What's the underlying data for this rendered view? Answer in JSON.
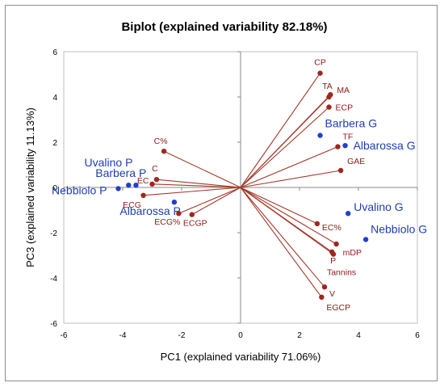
{
  "chart_data": {
    "type": "scatter",
    "title": "Biplot (explained variability 82.18%)",
    "xlabel": "PC1 (explained variability 71.06%)",
    "ylabel": "PC3 (explained variability 11.13%)",
    "xlim": [
      -6,
      6
    ],
    "ylim": [
      -6,
      6
    ],
    "xticks": [
      -6,
      -4,
      -2,
      0,
      2,
      4,
      6
    ],
    "yticks": [
      -6,
      -4,
      -2,
      0,
      2,
      4,
      6
    ],
    "grid": false,
    "colors": {
      "variables": "#a0261e",
      "vectors": "#a23a2a",
      "observations": "#1f3fd0"
    },
    "series": [
      {
        "name": "variables",
        "points": [
          {
            "label": "CP",
            "x": 2.7,
            "y": 5.05
          },
          {
            "label": "TA",
            "x": 3.0,
            "y": 4.0
          },
          {
            "label": "MA",
            "x": 3.05,
            "y": 4.1
          },
          {
            "label": "ECP",
            "x": 3.0,
            "y": 3.55
          },
          {
            "label": "TF",
            "x": 3.3,
            "y": 1.8
          },
          {
            "label": "GAE",
            "x": 3.4,
            "y": 0.75
          },
          {
            "label": "C%",
            "x": -2.6,
            "y": 1.6
          },
          {
            "label": "C",
            "x": -2.85,
            "y": 0.35
          },
          {
            "label": "EC",
            "x": -3.0,
            "y": 0.15
          },
          {
            "label": "ECG",
            "x": -3.3,
            "y": -0.35
          },
          {
            "label": "ECG%",
            "x": -2.1,
            "y": -1.15
          },
          {
            "label": "ECGP",
            "x": -1.65,
            "y": -1.2
          },
          {
            "label": "EC%",
            "x": 2.6,
            "y": -1.6
          },
          {
            "label": "mDP",
            "x": 3.25,
            "y": -2.5
          },
          {
            "label": "P",
            "x": 3.1,
            "y": -2.85
          },
          {
            "label": "Tannins",
            "x": 3.15,
            "y": -2.95
          },
          {
            "label": "V",
            "x": 2.85,
            "y": -4.4
          },
          {
            "label": "EGCP",
            "x": 2.75,
            "y": -4.85
          }
        ]
      },
      {
        "name": "observations",
        "points": [
          {
            "label": "Barbera G",
            "x": 2.7,
            "y": 2.3
          },
          {
            "label": "Albarossa G",
            "x": 3.55,
            "y": 1.85
          },
          {
            "label": "Uvalino G",
            "x": 3.65,
            "y": -1.15
          },
          {
            "label": "Nebbiolo G",
            "x": 4.25,
            "y": -2.3
          },
          {
            "label": "Uvalino P",
            "x": -3.55,
            "y": 0.1
          },
          {
            "label": "Barbera P",
            "x": -3.8,
            "y": 0.1
          },
          {
            "label": "Nebbiolo P",
            "x": -4.15,
            "y": -0.05
          },
          {
            "label": "Albarossa P",
            "x": -2.25,
            "y": -0.65
          }
        ]
      }
    ]
  }
}
